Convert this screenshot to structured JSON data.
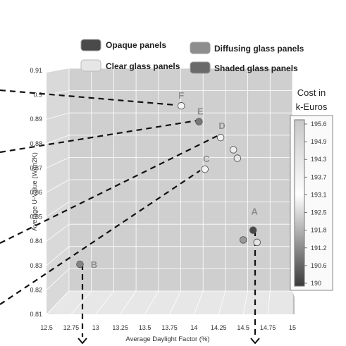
{
  "legend": {
    "items": [
      {
        "label": "Opaque panels",
        "color": "#4a4a4a"
      },
      {
        "label": "Diffusing glass panels",
        "color": "#8e8e8e"
      },
      {
        "label": "Clear glass panels",
        "color": "#e6e6e6"
      },
      {
        "label": "Shaded glass panels",
        "color": "#6a6a6a"
      }
    ]
  },
  "colorbar": {
    "title_line1": "Cost in",
    "title_line2": "k-Euros",
    "ticks": [
      "195.6",
      "194.9",
      "194.3",
      "193.7",
      "193.1",
      "192.5",
      "191.8",
      "191.2",
      "190.6",
      "190"
    ]
  },
  "chart_data": {
    "type": "scatter",
    "xlabel": "Average Daylight Factor (%)",
    "ylabel": "Average U-Value (W/m2K)",
    "xlim": [
      12.5,
      15
    ],
    "ylim": [
      0.81,
      0.91
    ],
    "x_ticks": [
      "12.5",
      "12.75",
      "13",
      "13.25",
      "13.5",
      "13.75",
      "14",
      "14.25",
      "14.5",
      "14.75",
      "15"
    ],
    "y_ticks": [
      "0.81",
      "0.82",
      "0.83",
      "0.84",
      "0.85",
      "0.86",
      "0.87",
      "0.88",
      "0.89",
      "0.9",
      "0.91"
    ],
    "grid": true,
    "points": [
      {
        "label": "F",
        "x": 13.87,
        "y": 0.8955,
        "fill": "#f4f4f4"
      },
      {
        "label": "E",
        "x": 14.05,
        "y": 0.889,
        "fill": "#777777"
      },
      {
        "label": "D",
        "x": 14.27,
        "y": 0.8825,
        "fill": "#f0f0f0"
      },
      {
        "label": "",
        "x": 14.4,
        "y": 0.8775,
        "fill": "#ededed"
      },
      {
        "label": "",
        "x": 14.44,
        "y": 0.874,
        "fill": "#e8e8e8"
      },
      {
        "label": "C",
        "x": 14.11,
        "y": 0.8695,
        "fill": "#f2f2f2"
      },
      {
        "label": "A",
        "x": 14.6,
        "y": 0.8445,
        "fill": "#4a4a4a"
      },
      {
        "label": "",
        "x": 14.5,
        "y": 0.8405,
        "fill": "#9a9a9a"
      },
      {
        "label": "",
        "x": 14.64,
        "y": 0.8395,
        "fill": "#e4e4e4"
      },
      {
        "label": "B",
        "x": 12.84,
        "y": 0.8305,
        "fill": "#858585"
      }
    ]
  }
}
